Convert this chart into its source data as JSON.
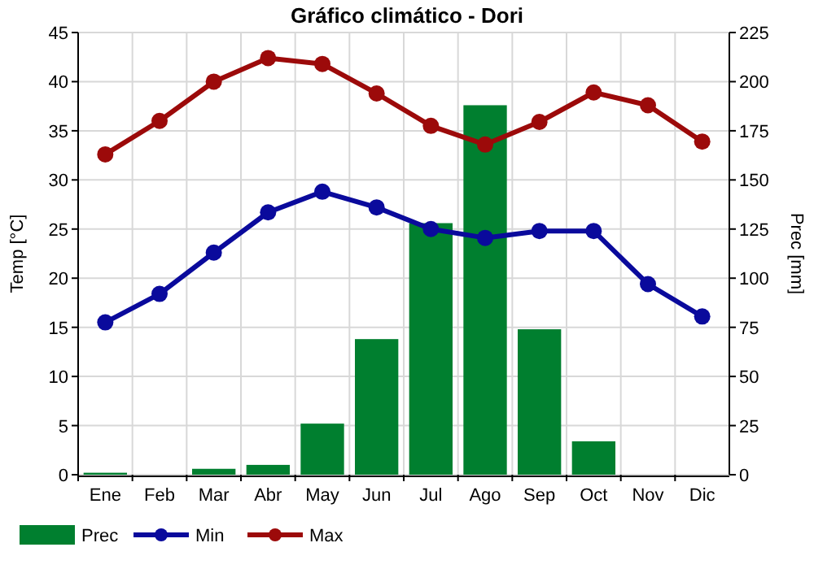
{
  "chart_data": {
    "type": "line",
    "title": "Gráfico climático - Dori",
    "ylabel": "Temp [°C]",
    "y2label": "Prec [mm]",
    "categories": [
      "Ene",
      "Feb",
      "Mar",
      "Abr",
      "May",
      "Jun",
      "Jul",
      "Ago",
      "Sep",
      "Oct",
      "Nov",
      "Dic"
    ],
    "series": [
      {
        "name": "Prec",
        "type": "bar",
        "axis": "y2",
        "color": "#007f2f",
        "values": [
          1,
          0,
          3,
          5,
          26,
          69,
          128,
          188,
          74,
          17,
          0,
          0
        ]
      },
      {
        "name": "Min",
        "color": "#0a0a9c",
        "values": [
          15.5,
          18.4,
          22.6,
          26.7,
          28.8,
          27.2,
          25,
          24.1,
          24.8,
          24.8,
          19.4,
          16.1
        ]
      },
      {
        "name": "Max",
        "color": "#9c0a0a",
        "values": [
          32.6,
          36,
          40,
          42.4,
          41.8,
          38.8,
          35.5,
          33.6,
          35.9,
          38.9,
          37.6,
          33.9
        ]
      }
    ],
    "ylim": [
      0,
      45
    ],
    "yticks": [
      0,
      5,
      10,
      15,
      20,
      25,
      30,
      35,
      40,
      45
    ],
    "y2lim": [
      0,
      225
    ],
    "y2ticks": [
      0,
      25,
      50,
      75,
      100,
      125,
      150,
      175,
      200,
      225
    ],
    "grid": true,
    "legend": "bottom",
    "marker": "circle",
    "line_style": "solid"
  }
}
